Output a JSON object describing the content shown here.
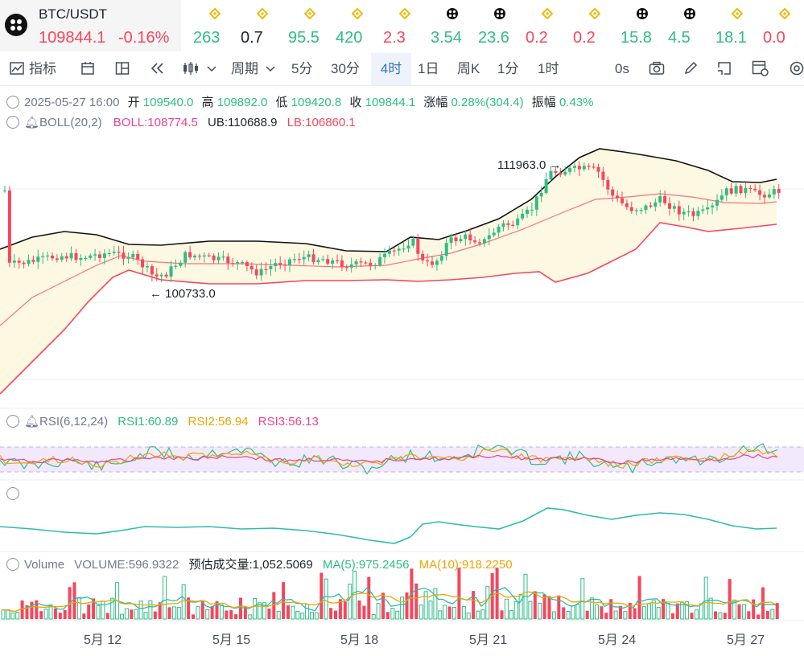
{
  "main_ticker": {
    "pair": "BTC/USDT",
    "price": "109844.1",
    "change": "-0.16%"
  },
  "ticker_items": [
    {
      "icon": "bnb-icon",
      "value": "263"
    },
    {
      "icon": "bnb-icon",
      "value": "0.7"
    },
    {
      "icon": "bnb-icon",
      "value": "95.5"
    },
    {
      "icon": "bnb-icon",
      "value": "420"
    },
    {
      "icon": "bnb-icon",
      "value": "2.3"
    },
    {
      "icon": "token-icon",
      "value": "3.54"
    },
    {
      "icon": "token-icon",
      "value": "23.6"
    },
    {
      "icon": "bnb-icon",
      "value": "0.2"
    },
    {
      "icon": "bnb-icon",
      "value": "0.2"
    },
    {
      "icon": "token-icon",
      "value": "15.8"
    },
    {
      "icon": "token-icon",
      "value": "4.5"
    },
    {
      "icon": "bnb-icon",
      "value": "18.1"
    },
    {
      "icon": "bnb-icon",
      "value": "0.0"
    }
  ],
  "toolbar": {
    "indicators": "指标",
    "period": "周期",
    "intervals": [
      "5分",
      "30分",
      "4时",
      "1日",
      "周K",
      "1分",
      "1时"
    ],
    "active_interval": "4时",
    "timer": "0s"
  },
  "ohlc": {
    "date": "2025-05-27 16:00",
    "open_label": "开",
    "open": "109540.0",
    "high_label": "高",
    "high": "109892.0",
    "low_label": "低",
    "low": "109420.8",
    "close_label": "收",
    "close": "109844.1",
    "change_label": "涨幅",
    "change": "0.28%(304.4)",
    "amp_label": "振幅",
    "amp": "0.43%"
  },
  "boll": {
    "label": "BOLL(20,2)",
    "mid": "BOLL:108774.5",
    "ub": "UB:110688.9",
    "lb": "LB:106860.1"
  },
  "rsi": {
    "label": "RSI(6,12,24)",
    "rsi1": "RSI1:60.89",
    "rsi2": "RSI2:56.94",
    "rsi3": "RSI3:56.13"
  },
  "volume": {
    "label": "Volume",
    "value": "VOLUME:596.9322",
    "est": "预估成交量:1,052.5069",
    "ma5": "MA(5):975.2456",
    "ma10": "MA(10):918.2250"
  },
  "chart_data": {
    "type": "candlestick",
    "interval": "4时",
    "high_marker": "111963.0",
    "low_marker": "100733.0",
    "x_tick_labels": [
      "5月 12",
      "5月 15",
      "5月 18",
      "5月 21",
      "5月 24",
      "5月 27"
    ]
  },
  "colors": {
    "up": "#2ebd85",
    "down": "#f6465d",
    "accent": "#3375bb"
  }
}
